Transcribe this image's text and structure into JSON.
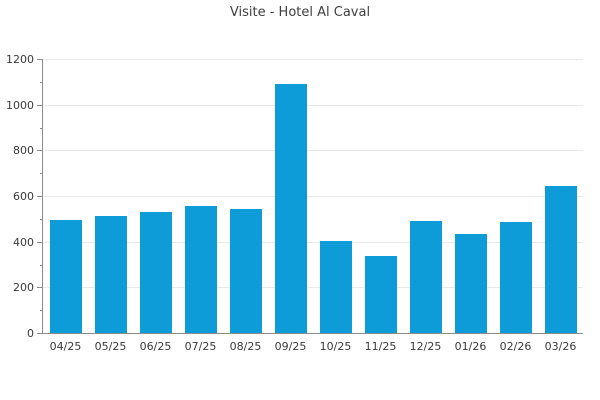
{
  "chart_data": {
    "type": "bar",
    "title": "Visite - Hotel Al Caval",
    "categories": [
      "04/25",
      "05/25",
      "06/25",
      "07/25",
      "08/25",
      "09/25",
      "10/25",
      "11/25",
      "12/25",
      "01/26",
      "02/26",
      "03/26"
    ],
    "values": [
      495,
      512,
      530,
      557,
      545,
      1090,
      403,
      338,
      492,
      434,
      488,
      645
    ],
    "xlabel": "",
    "ylabel": "",
    "ylim": [
      0,
      1200
    ],
    "ytick_step": 200,
    "yminor_tick_step": 100,
    "ytick_labels": [
      "0",
      "200",
      "400",
      "600",
      "800",
      "1000",
      "1200"
    ],
    "grid": true,
    "legend": false,
    "bar_color": "#0e9cd8"
  },
  "colors": {
    "bar": "#0e9cd8",
    "grid": "#e8e8e8",
    "axis": "#8c8c8c",
    "tick_label": "#3a3a3a",
    "title": "#3f3f3f",
    "background": "#ffffff"
  }
}
